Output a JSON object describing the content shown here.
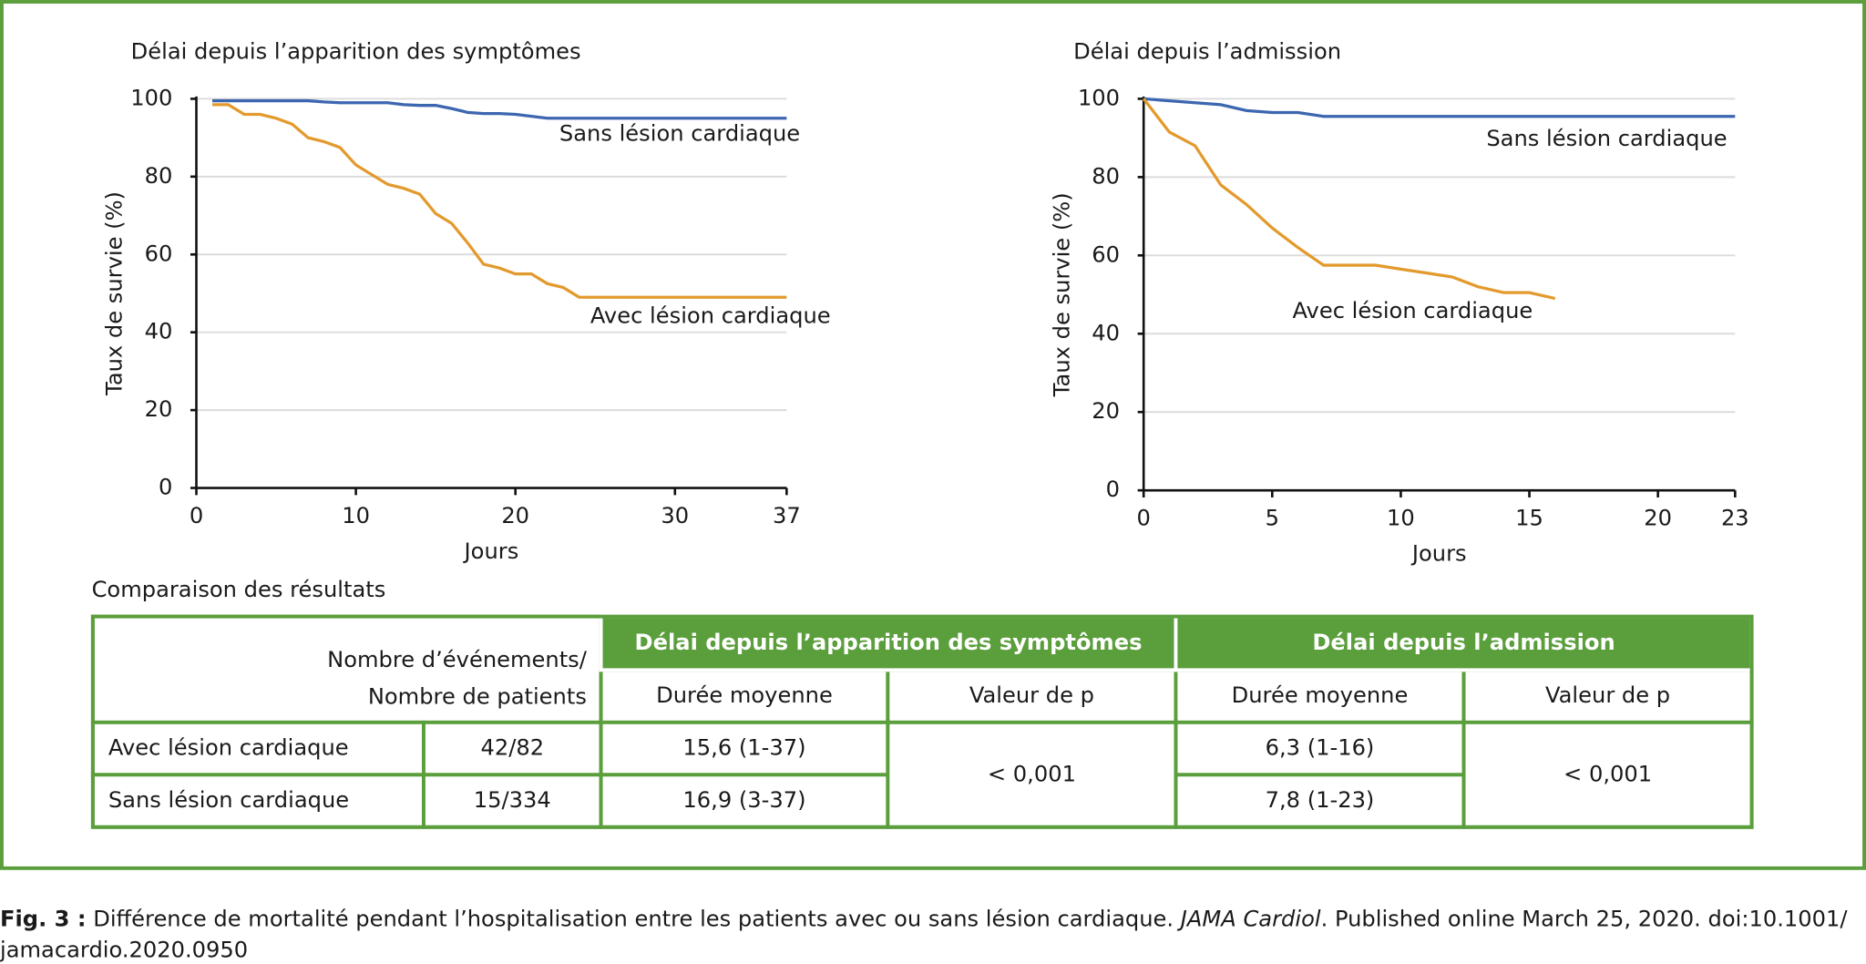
{
  "chart_data": [
    {
      "type": "line",
      "title": "Délai depuis l’apparition des symptômes",
      "ylabel": "Taux de survie (%)",
      "xlabel": "Jours",
      "x": [
        1,
        2,
        3,
        4,
        5,
        6,
        7,
        8,
        9,
        10,
        11,
        12,
        13,
        14,
        15,
        16,
        17,
        18,
        19,
        20,
        21,
        22,
        23,
        24,
        25,
        26,
        27,
        28,
        29,
        30,
        31,
        32,
        33,
        34,
        35,
        36,
        37
      ],
      "series": [
        {
          "name": "Sans lésion cardiaque",
          "color": "#3d66b0",
          "values": [
            99.5,
            99.5,
            99.5,
            99.5,
            99.5,
            99.5,
            99.5,
            99.2,
            99,
            99,
            99,
            99,
            98.5,
            98.3,
            98.3,
            97.5,
            96.5,
            96.2,
            96.2,
            96,
            95.5,
            95,
            95,
            95,
            95,
            95,
            95,
            95,
            95,
            95,
            95,
            95,
            95,
            95,
            95,
            95,
            95
          ]
        },
        {
          "name": "Avec lésion cardiaque",
          "color": "#e39a2d",
          "values": [
            98.5,
            98.5,
            96,
            96,
            95,
            93.5,
            90,
            89,
            87.5,
            83,
            80.5,
            78,
            77,
            75.5,
            70.5,
            68,
            63,
            57.5,
            56.5,
            55,
            55,
            52.5,
            51.5,
            49,
            49,
            49,
            49,
            49,
            49,
            49,
            49,
            49,
            49,
            49,
            49,
            49,
            49
          ]
        }
      ],
      "xlim": [
        0,
        37
      ],
      "xticks": [
        0,
        10,
        20,
        30,
        37
      ],
      "ylim": [
        0,
        100
      ],
      "yticks": [
        0,
        20,
        40,
        60,
        80,
        100
      ],
      "grid": true
    },
    {
      "type": "line",
      "title": "Délai depuis l’admission",
      "ylabel": "Taux de survie (%)",
      "xlabel": "Jours",
      "x": [
        0,
        1,
        2,
        3,
        4,
        5,
        6,
        7,
        8,
        9,
        10,
        11,
        12,
        13,
        14,
        15,
        16,
        17,
        18,
        19,
        20,
        21,
        22,
        23
      ],
      "series": [
        {
          "name": "Sans lésion cardiaque",
          "color": "#3d66b0",
          "values": [
            100,
            99.5,
            99,
            98.5,
            97,
            96.5,
            96.5,
            95.5,
            95.5,
            95.5,
            95.5,
            95.5,
            95.5,
            95.5,
            95.5,
            95.5,
            95.5,
            95.5,
            95.5,
            95.5,
            95.5,
            95.5,
            95.5,
            95.5
          ]
        },
        {
          "name": "Avec lésion cardiaque",
          "color": "#e39a2d",
          "values": [
            100,
            91.5,
            88,
            78,
            73,
            67,
            62,
            57.5,
            57.5,
            57.5,
            56.5,
            55.5,
            54.5,
            52,
            50.5,
            50.5,
            49,
            null,
            null,
            null,
            null,
            null,
            null,
            null
          ]
        }
      ],
      "xlim": [
        0,
        23
      ],
      "xticks": [
        0,
        5,
        10,
        15,
        20,
        23
      ],
      "ylim": [
        0,
        100
      ],
      "yticks": [
        0,
        20,
        40,
        60,
        80,
        100
      ],
      "grid": true
    }
  ],
  "table": {
    "title": "Comparaison des résultats",
    "header_left": [
      "Nombre d’événements/",
      "Nombre de patients"
    ],
    "groups": [
      "Délai depuis l’apparition des symptômes",
      "Délai depuis l’admission"
    ],
    "subheaders": [
      "Durée moyenne",
      "Valeur de p",
      "Durée moyenne",
      "Valeur de p"
    ],
    "rows": [
      [
        "Avec lésion cardiaque",
        "42/82",
        "15,6 (1-37)",
        "6,3 (1-16)"
      ],
      [
        "Sans lésion cardiaque",
        "15/334",
        "16,9 (3-37)",
        "7,8 (1-23)"
      ]
    ],
    "p_values": [
      "< 0,001",
      "< 0,001"
    ]
  },
  "caption": {
    "label": "Fig. 3 :",
    "text": " Différence de mortalité pendant l’hospitalisation entre les patients avec ou sans lésion cardiaque. ",
    "journal": "JAMA Cardiol",
    "text2": ". Published online March 25, 2020. doi:10.1001/",
    "line2": "jamacardio.2020.0950"
  }
}
